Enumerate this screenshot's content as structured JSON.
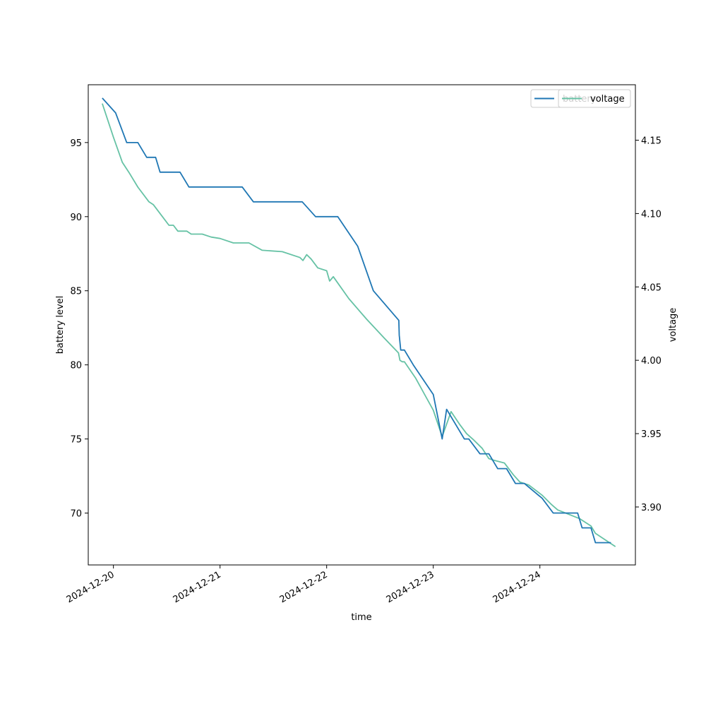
{
  "chart_data": {
    "type": "line",
    "xlabel": "time",
    "ylabel_left": "battery level",
    "ylabel_right": "voltage",
    "xlim": [
      "2024-12-19 18:20",
      "2024-12-24 21:30"
    ],
    "ylim_left": [
      66.5,
      98.9
    ],
    "ylim_right": [
      3.8605,
      4.1878
    ],
    "x_ticks": [
      "2024-12-20",
      "2024-12-21",
      "2024-12-22",
      "2024-12-23",
      "2024-12-24"
    ],
    "y_ticks_left": [
      70,
      75,
      80,
      85,
      90,
      95
    ],
    "y_ticks_right": [
      3.9,
      3.95,
      4.0,
      4.05,
      4.1,
      4.15
    ],
    "legend_position": "top-right",
    "grid": false,
    "series": [
      {
        "name": "battery",
        "axis": "left",
        "color": "#1f77b4",
        "points": [
          [
            "2024-12-19 21:30",
            98
          ],
          [
            "2024-12-20 00:30",
            97
          ],
          [
            "2024-12-20 03:00",
            95
          ],
          [
            "2024-12-20 05:30",
            95
          ],
          [
            "2024-12-20 07:30",
            94
          ],
          [
            "2024-12-20 09:30",
            94
          ],
          [
            "2024-12-20 10:30",
            93
          ],
          [
            "2024-12-20 15:00",
            93
          ],
          [
            "2024-12-20 17:00",
            92
          ],
          [
            "2024-12-21 05:00",
            92
          ],
          [
            "2024-12-21 07:30",
            91
          ],
          [
            "2024-12-21 18:30",
            91
          ],
          [
            "2024-12-21 21:30",
            90
          ],
          [
            "2024-12-22 02:30",
            90
          ],
          [
            "2024-12-22 07:00",
            88
          ],
          [
            "2024-12-22 10:30",
            85
          ],
          [
            "2024-12-22 16:15",
            83
          ],
          [
            "2024-12-22 16:20",
            82
          ],
          [
            "2024-12-22 16:40",
            81
          ],
          [
            "2024-12-22 17:30",
            81
          ],
          [
            "2024-12-22 19:30",
            80
          ],
          [
            "2024-12-23 00:00",
            78
          ],
          [
            "2024-12-23 02:00",
            75
          ],
          [
            "2024-12-23 03:00",
            77
          ],
          [
            "2024-12-23 07:00",
            75
          ],
          [
            "2024-12-23 08:00",
            75
          ],
          [
            "2024-12-23 10:30",
            74
          ],
          [
            "2024-12-23 12:30",
            74
          ],
          [
            "2024-12-23 14:30",
            73
          ],
          [
            "2024-12-23 16:30",
            73
          ],
          [
            "2024-12-23 18:30",
            72
          ],
          [
            "2024-12-23 20:30",
            72
          ],
          [
            "2024-12-24 00:30",
            71
          ],
          [
            "2024-12-24 03:00",
            70
          ],
          [
            "2024-12-24 06:00",
            70
          ],
          [
            "2024-12-24 08:30",
            70
          ],
          [
            "2024-12-24 09:30",
            69
          ],
          [
            "2024-12-24 11:30",
            69
          ],
          [
            "2024-12-24 12:30",
            68
          ],
          [
            "2024-12-24 16:00",
            68
          ]
        ]
      },
      {
        "name": "voltage",
        "axis": "right",
        "color": "#66c2a5",
        "points": [
          [
            "2024-12-19 21:30",
            4.175
          ],
          [
            "2024-12-20 00:00",
            4.152
          ],
          [
            "2024-12-20 02:00",
            4.135
          ],
          [
            "2024-12-20 03:30",
            4.128
          ],
          [
            "2024-12-20 05:30",
            4.118
          ],
          [
            "2024-12-20 08:00",
            4.108
          ],
          [
            "2024-12-20 09:00",
            4.106
          ],
          [
            "2024-12-20 11:00",
            4.098
          ],
          [
            "2024-12-20 12:30",
            4.092
          ],
          [
            "2024-12-20 13:30",
            4.092
          ],
          [
            "2024-12-20 14:30",
            4.088
          ],
          [
            "2024-12-20 16:30",
            4.088
          ],
          [
            "2024-12-20 17:30",
            4.086
          ],
          [
            "2024-12-20 20:00",
            4.086
          ],
          [
            "2024-12-20 22:00",
            4.084
          ],
          [
            "2024-12-21 00:00",
            4.083
          ],
          [
            "2024-12-21 03:00",
            4.08
          ],
          [
            "2024-12-21 06:30",
            4.08
          ],
          [
            "2024-12-21 09:30",
            4.075
          ],
          [
            "2024-12-21 14:00",
            4.074
          ],
          [
            "2024-12-21 18:00",
            4.07
          ],
          [
            "2024-12-21 18:40",
            4.068
          ],
          [
            "2024-12-21 19:30",
            4.072
          ],
          [
            "2024-12-21 20:30",
            4.069
          ],
          [
            "2024-12-21 22:00",
            4.063
          ],
          [
            "2024-12-22 00:00",
            4.061
          ],
          [
            "2024-12-22 00:40",
            4.054
          ],
          [
            "2024-12-22 01:30",
            4.057
          ],
          [
            "2024-12-22 05:00",
            4.042
          ],
          [
            "2024-12-22 09:00",
            4.028
          ],
          [
            "2024-12-22 13:00",
            4.015
          ],
          [
            "2024-12-22 16:10",
            4.005
          ],
          [
            "2024-12-22 16:30",
            4.0
          ],
          [
            "2024-12-22 17:00",
            3.999
          ],
          [
            "2024-12-22 17:30",
            3.999
          ],
          [
            "2024-12-22 20:00",
            3.988
          ],
          [
            "2024-12-22 22:00",
            3.977
          ],
          [
            "2024-12-23 00:00",
            3.966
          ],
          [
            "2024-12-23 02:00",
            3.948
          ],
          [
            "2024-12-23 04:00",
            3.965
          ],
          [
            "2024-12-23 06:00",
            3.956
          ],
          [
            "2024-12-23 07:30",
            3.95
          ],
          [
            "2024-12-23 09:00",
            3.946
          ],
          [
            "2024-12-23 11:00",
            3.94
          ],
          [
            "2024-12-23 12:30",
            3.933
          ],
          [
            "2024-12-23 13:30",
            3.932
          ],
          [
            "2024-12-23 16:00",
            3.93
          ],
          [
            "2024-12-23 18:00",
            3.922
          ],
          [
            "2024-12-23 19:30",
            3.917
          ],
          [
            "2024-12-23 21:30",
            3.915
          ],
          [
            "2024-12-24 00:30",
            3.908
          ],
          [
            "2024-12-24 02:30",
            3.902
          ],
          [
            "2024-12-24 04:00",
            3.898
          ],
          [
            "2024-12-24 06:30",
            3.895
          ],
          [
            "2024-12-24 09:00",
            3.892
          ],
          [
            "2024-12-24 11:30",
            3.887
          ],
          [
            "2024-12-24 12:30",
            3.882
          ],
          [
            "2024-12-24 14:30",
            3.878
          ],
          [
            "2024-12-24 15:30",
            3.876
          ],
          [
            "2024-12-24 17:00",
            3.873
          ]
        ]
      }
    ]
  }
}
